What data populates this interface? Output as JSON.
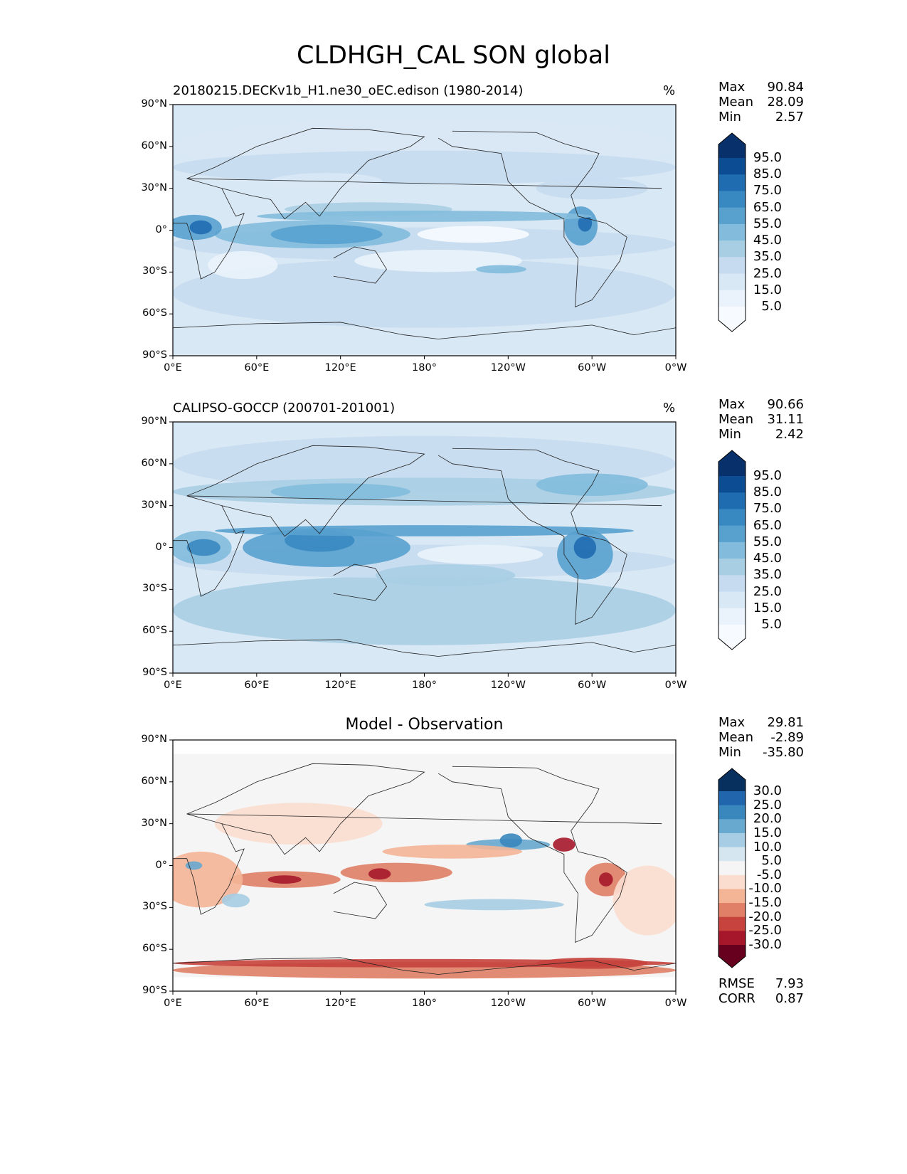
{
  "title": "CLDHGH_CAL SON global",
  "chart_data": [
    {
      "type": "heatmap",
      "kind": "map",
      "title": "20180215.DECKv1b_H1.ne30_oEC.edison (1980-2014)",
      "units": "%",
      "xticks": [
        "0°E",
        "60°E",
        "120°E",
        "180°",
        "120°W",
        "60°W",
        "0°W"
      ],
      "yticks": [
        "90°N",
        "60°N",
        "30°N",
        "0°",
        "30°S",
        "60°S",
        "90°S"
      ],
      "stats": [
        {
          "label": "Max",
          "value": "90.84"
        },
        {
          "label": "Mean",
          "value": "28.09"
        },
        {
          "label": "Min",
          "value": "2.57"
        }
      ],
      "colorbar": {
        "labels": [
          "95.0",
          "85.0",
          "75.0",
          "65.0",
          "55.0",
          "45.0",
          "35.0",
          "25.0",
          "15.0",
          "5.0"
        ],
        "colors": [
          "#08306b",
          "#0b4c92",
          "#1f6cb0",
          "#3888c1",
          "#58a1cf",
          "#82bbdb",
          "#a8cee4",
          "#c6dbef",
          "#d9e8f5",
          "#eaf3fb",
          "#f7fbff"
        ]
      }
    },
    {
      "type": "heatmap",
      "kind": "map",
      "title": "CALIPSO-GOCCP (200701-201001)",
      "units": "%",
      "xticks": [
        "0°E",
        "60°E",
        "120°E",
        "180°",
        "120°W",
        "60°W",
        "0°W"
      ],
      "yticks": [
        "90°N",
        "60°N",
        "30°N",
        "0°",
        "30°S",
        "60°S",
        "90°S"
      ],
      "stats": [
        {
          "label": "Max",
          "value": "90.66"
        },
        {
          "label": "Mean",
          "value": "31.11"
        },
        {
          "label": "Min",
          "value": "2.42"
        }
      ],
      "colorbar": {
        "labels": [
          "95.0",
          "85.0",
          "75.0",
          "65.0",
          "55.0",
          "45.0",
          "35.0",
          "25.0",
          "15.0",
          "5.0"
        ],
        "colors": [
          "#08306b",
          "#0b4c92",
          "#1f6cb0",
          "#3888c1",
          "#58a1cf",
          "#82bbdb",
          "#a8cee4",
          "#c6dbef",
          "#d9e8f5",
          "#eaf3fb",
          "#f7fbff"
        ]
      }
    },
    {
      "type": "heatmap",
      "kind": "map",
      "title": "Model - Observation",
      "units": "",
      "xticks": [
        "0°E",
        "60°E",
        "120°E",
        "180°",
        "120°W",
        "60°W",
        "0°W"
      ],
      "yticks": [
        "90°N",
        "60°N",
        "30°N",
        "0°",
        "30°S",
        "60°S",
        "90°S"
      ],
      "stats": [
        {
          "label": "Max",
          "value": "29.81"
        },
        {
          "label": "Mean",
          "value": "-2.89"
        },
        {
          "label": "Min",
          "value": "-35.80"
        }
      ],
      "extra_stats": [
        {
          "label": "RMSE",
          "value": "7.93"
        },
        {
          "label": "CORR",
          "value": "0.87"
        }
      ],
      "colorbar": {
        "labels": [
          "30.0",
          "25.0",
          "20.0",
          "15.0",
          "10.0",
          "5.0",
          "-5.0",
          "-10.0",
          "-15.0",
          "-20.0",
          "-25.0",
          "-30.0"
        ],
        "colors": [
          "#08305f",
          "#2166ac",
          "#3a87bd",
          "#67a9cf",
          "#a6cde3",
          "#d5e6f0",
          "#f5f5f5",
          "#fbddcf",
          "#f4b597",
          "#e08066",
          "#c7433d",
          "#a6172b",
          "#67001f"
        ]
      }
    }
  ]
}
